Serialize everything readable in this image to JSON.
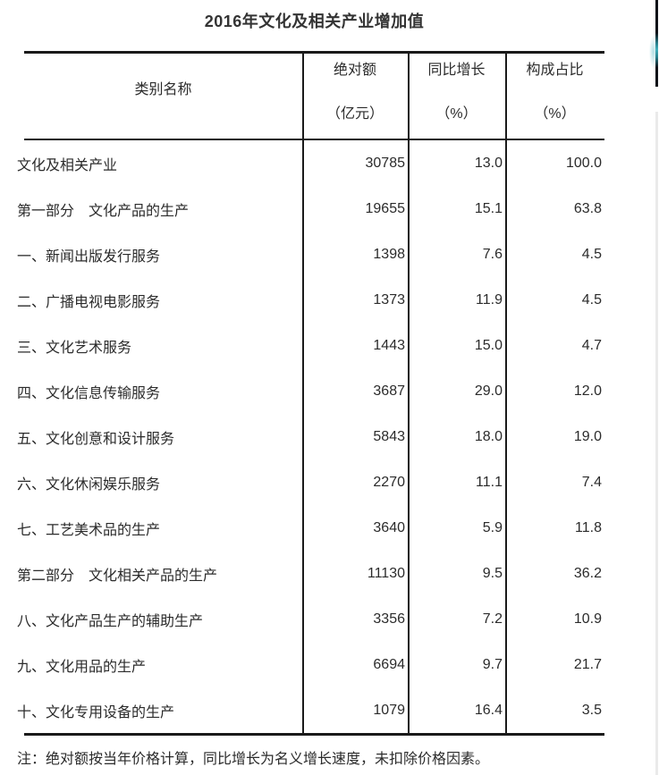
{
  "page": {
    "title": "2016年文化及相关产业增加值",
    "note": "注：绝对额按当年价格计算，同比增长为名义增长速度，未扣除价格因素。"
  },
  "colors": {
    "text": "#2b2b2b",
    "border": "#1a1a1a",
    "scrollbar_accent": "#3fb0bc",
    "scrollbar_track": "#eaeaea"
  },
  "table": {
    "header": {
      "category": "类别名称",
      "columns": [
        {
          "line1": "绝对额",
          "line2": "（亿元）"
        },
        {
          "line1": "同比增长",
          "line2": "（%）"
        },
        {
          "line1": "构成占比",
          "line2": "（%）"
        }
      ]
    },
    "rows": [
      {
        "label": "文化及相关产业",
        "absolute": "30785",
        "growth": "13.0",
        "share": "100.0"
      },
      {
        "label": "第一部分　文化产品的生产",
        "absolute": "19655",
        "growth": "15.1",
        "share": "63.8"
      },
      {
        "label": "一、新闻出版发行服务",
        "absolute": "1398",
        "growth": "7.6",
        "share": "4.5"
      },
      {
        "label": "二、广播电视电影服务",
        "absolute": "1373",
        "growth": "11.9",
        "share": "4.5"
      },
      {
        "label": "三、文化艺术服务",
        "absolute": "1443",
        "growth": "15.0",
        "share": "4.7"
      },
      {
        "label": "四、文化信息传输服务",
        "absolute": "3687",
        "growth": "29.0",
        "share": "12.0"
      },
      {
        "label": "五、文化创意和设计服务",
        "absolute": "5843",
        "growth": "18.0",
        "share": "19.0"
      },
      {
        "label": "六、文化休闲娱乐服务",
        "absolute": "2270",
        "growth": "11.1",
        "share": "7.4"
      },
      {
        "label": "七、工艺美术品的生产",
        "absolute": "3640",
        "growth": "5.9",
        "share": "11.8"
      },
      {
        "label": "第二部分　文化相关产品的生产",
        "absolute": "11130",
        "growth": "9.5",
        "share": "36.2"
      },
      {
        "label": "八、文化产品生产的辅助生产",
        "absolute": "3356",
        "growth": "7.2",
        "share": "10.9"
      },
      {
        "label": "九、文化用品的生产",
        "absolute": "6694",
        "growth": "9.7",
        "share": "21.7"
      },
      {
        "label": "十、文化专用设备的生产",
        "absolute": "1079",
        "growth": "16.4",
        "share": "3.5"
      }
    ]
  }
}
